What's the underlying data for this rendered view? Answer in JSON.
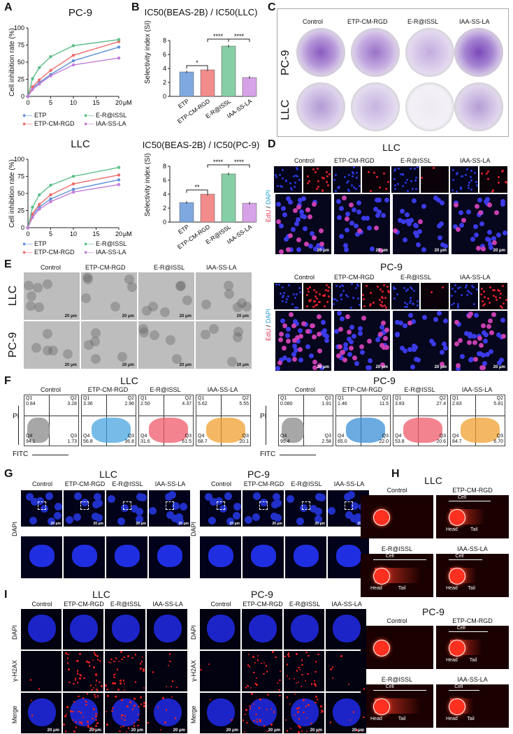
{
  "panel_letters": [
    "A",
    "B",
    "C",
    "D",
    "E",
    "F",
    "G",
    "H",
    "I"
  ],
  "colors": {
    "etp": "#5b8fd6",
    "etp_cm_rgd": "#ef6b6b",
    "e_r_issl": "#5cbf8a",
    "iaa_ss_la": "#c27bd9",
    "bar_etp": "#7fa8e0",
    "bar_cm": "#f28b8b",
    "bar_er": "#86cfa6",
    "bar_iaa": "#d6a3e8"
  },
  "panelA": {
    "pc9_title": "PC-9",
    "llc_title": "LLC",
    "ylabel": "Cell inhibition rate (%)",
    "x_unit": "μM",
    "legend": [
      "ETP",
      "ETP-CM-RGD",
      "E-R@ISSL",
      "IAA-SS-LA"
    ]
  },
  "panelB": {
    "top_title": "IC50(BEAS-2B) / IC50(LLC)",
    "bottom_title": "IC50(BEAS-2B) / IC50(PC-9)",
    "ylabel": "Selectivity index (SI)",
    "categories": [
      "ETP",
      "ETP-CM-RGD",
      "E-R@ISSL",
      "IAA-SS-LA"
    ],
    "top_sig": [
      "*",
      "****",
      "****"
    ],
    "bottom_sig": [
      "**",
      "****",
      "****"
    ]
  },
  "panelC": {
    "cols": [
      "Control",
      "ETP-CM-RGD",
      "E-R@ISSL",
      "IAA-SS-LA"
    ],
    "rows": [
      "PC-9",
      "LLC"
    ]
  },
  "panelD": {
    "llc_title": "LLC",
    "pc9_title": "PC-9",
    "cols": [
      "Control",
      "ETP-CM-RGD",
      "E-R@ISSL",
      "IAA-SS-LA"
    ],
    "ylabel_edu": "EdU",
    "ylabel_dapi": "DAPI",
    "scale": "20 μm"
  },
  "panelE": {
    "cols": [
      "Control",
      "ETP-CM-RGD",
      "E-R@ISSL",
      "IAA-SS-LA"
    ],
    "rows": [
      "LLC",
      "PC-9"
    ],
    "scale": "20 μm"
  },
  "panelF": {
    "llc_title": "LLC",
    "pc9_title": "PC-9",
    "cols": [
      "Control",
      "ETP-CM-RGD",
      "E-R@ISSL",
      "IAA-SS-LA"
    ],
    "xaxis": "FITC",
    "yaxis": "PI",
    "llc_values": [
      [
        "0.84",
        "3.28",
        "94.1",
        "1.73"
      ],
      [
        "3.36",
        "2.96",
        "56.8",
        "36.8"
      ],
      [
        "2.50",
        "4.37",
        "31.6",
        "61.5"
      ],
      [
        "5.62",
        "5.55",
        "68.7",
        "20.1"
      ]
    ],
    "pc9_values": [
      [
        "0.080",
        "1.91",
        "95.4",
        "2.58"
      ],
      [
        "1.46",
        "11.5",
        "65.0",
        "22.0"
      ],
      [
        "3.83",
        "27.4",
        "53.8",
        "20.6"
      ],
      [
        "2.83",
        "5.81",
        "84.7",
        "6.70"
      ]
    ]
  },
  "panelG": {
    "llc_title": "LLC",
    "pc9_title": "PC-9",
    "cols": [
      "Control",
      "ETP-CM-RGD",
      "E-R@ISSL",
      "IAA-SS-LA"
    ],
    "row_label": "DAPI",
    "scale": "20 μm"
  },
  "panelH": {
    "llc_title": "LLC",
    "pc9_title": "PC-9",
    "cols": [
      "Control",
      "ETP-CM-RGD",
      "E-R@ISSL",
      "IAA-SS-LA"
    ],
    "cell": "Cell",
    "head": "Head",
    "tail": "Tail"
  },
  "panelI": {
    "llc_title": "LLC",
    "pc9_title": "PC-9",
    "cols": [
      "Control",
      "ETP-CM-RGD",
      "E-R@ISSL",
      "IAA-SS-LA"
    ],
    "rows": [
      "DAPI",
      "γ-H2AX",
      "Merge"
    ],
    "scale": "20 μm"
  },
  "chart_data": [
    {
      "type": "line",
      "title": "PC-9",
      "xlabel": "μM",
      "ylabel": "Cell inhibition rate (%)",
      "x": [
        0,
        1,
        2.5,
        5,
        10,
        20
      ],
      "xlim": [
        0,
        20
      ],
      "ylim": [
        0,
        100
      ],
      "series": [
        {
          "name": "ETP",
          "values": [
            0,
            12,
            20,
            32,
            52,
            72
          ]
        },
        {
          "name": "ETP-CM-RGD",
          "values": [
            0,
            14,
            24,
            38,
            60,
            80
          ]
        },
        {
          "name": "E-R@ISSL",
          "values": [
            0,
            26,
            42,
            58,
            74,
            83
          ]
        },
        {
          "name": "IAA-SS-LA",
          "values": [
            0,
            10,
            18,
            30,
            46,
            56
          ]
        }
      ]
    },
    {
      "type": "line",
      "title": "LLC",
      "xlabel": "μM",
      "ylabel": "Cell inhibition rate (%)",
      "x": [
        0,
        1,
        2.5,
        5,
        10,
        20
      ],
      "xlim": [
        0,
        20
      ],
      "ylim": [
        0,
        100
      ],
      "series": [
        {
          "name": "ETP",
          "values": [
            0,
            18,
            30,
            42,
            56,
            70
          ]
        },
        {
          "name": "ETP-CM-RGD",
          "values": [
            0,
            20,
            34,
            48,
            64,
            77
          ]
        },
        {
          "name": "E-R@ISSL",
          "values": [
            0,
            30,
            48,
            62,
            75,
            88
          ]
        },
        {
          "name": "IAA-SS-LA",
          "values": [
            0,
            15,
            27,
            38,
            52,
            63
          ]
        }
      ]
    },
    {
      "type": "bar",
      "title": "IC50(BEAS-2B) / IC50(LLC)",
      "ylabel": "Selectivity index (SI)",
      "categories": [
        "ETP",
        "ETP-CM-RGD",
        "E-R@ISSL",
        "IAA-SS-LA"
      ],
      "values": [
        3.5,
        3.8,
        7.2,
        2.7
      ],
      "ylim": [
        0,
        8
      ]
    },
    {
      "type": "bar",
      "title": "IC50(BEAS-2B) / IC50(PC-9)",
      "ylabel": "Selectivity index (SI)",
      "categories": [
        "ETP",
        "ETP-CM-RGD",
        "E-R@ISSL",
        "IAA-SS-LA"
      ],
      "values": [
        2.8,
        4.0,
        6.9,
        2.7
      ],
      "ylim": [
        0,
        8
      ]
    }
  ]
}
